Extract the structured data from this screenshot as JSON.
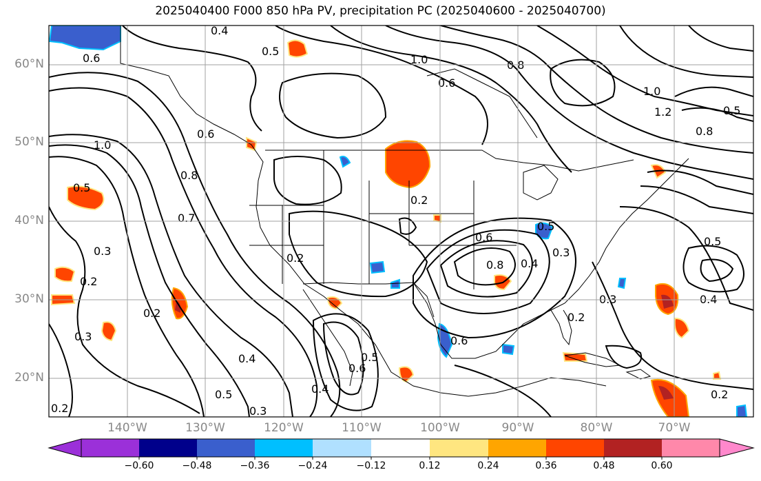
{
  "title": "2025040400 F000 850 hPa PV, precipitation PC (2025040600 - 2025040700)",
  "lat_labels": [
    "60°N",
    "50°N",
    "40°N",
    "30°N",
    "20°N"
  ],
  "lon_labels": [
    "140°W",
    "130°W",
    "120°W",
    "110°W",
    "100°W",
    "90°W",
    "80°W",
    "70°W"
  ],
  "colorbar": {
    "ticks": [
      "−0.60",
      "−0.48",
      "−0.36",
      "−0.24",
      "−0.12",
      "0.12",
      "0.24",
      "0.36",
      "0.48",
      "0.60"
    ],
    "colors": [
      "#9b30d9",
      "#00008b",
      "#3a5fcd",
      "#00bfff",
      "#b0e0ff",
      "#ffffff",
      "#ffe680",
      "#ffa500",
      "#ff4500",
      "#b22222",
      "#ff88aa",
      "#ff88cc"
    ]
  },
  "contour_labels": [
    "0.4",
    "0.5",
    "0.6",
    "1.0",
    "0.8",
    "0.6",
    "1.0",
    "1.2",
    "0.8",
    "0.5",
    "1.0",
    "0.6",
    "0.8",
    "0.7",
    "0.5",
    "0.3",
    "0.2",
    "0.2",
    "0.3",
    "0.2",
    "0.2",
    "0.6",
    "0.8",
    "0.4",
    "0.3",
    "0.2",
    "0.5",
    "0.4",
    "0.4",
    "0.5",
    "0.6",
    "0.4",
    "0.5",
    "0.3",
    "0.2",
    "0.3",
    "0.2",
    "0.5",
    "0.6"
  ],
  "colors": {
    "precip_pos_mid": "#ff4500",
    "precip_pos_high": "#b22222",
    "precip_pos_low": "#ffa500",
    "precip_neg_mid": "#3a5fcd",
    "precip_neg_low": "#00bfff",
    "grid": "#a0a0a0"
  }
}
